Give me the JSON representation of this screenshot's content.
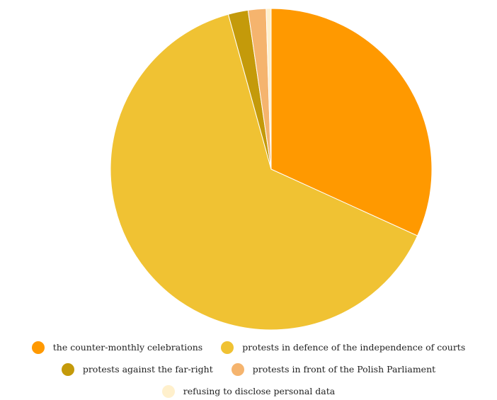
{
  "chart_data": {
    "type": "pie",
    "title": "",
    "start_angle_deg": 0,
    "direction": "clockwise",
    "legend_position": "bottom",
    "slices": [
      {
        "label": "the counter-monthly celebrations",
        "value": 31.8,
        "color": "#FF9900"
      },
      {
        "label": "protests in defence of the independence of courts",
        "value": 63.9,
        "color": "#F0C233"
      },
      {
        "label": "protests against the far-right",
        "value": 2.0,
        "color": "#C49A0A"
      },
      {
        "label": "protests in front of the Polish Parliament",
        "value": 1.8,
        "color": "#F5B46E"
      },
      {
        "label": "refusing to disclose personal data",
        "value": 0.5,
        "color": "#FFF0CC"
      }
    ]
  }
}
